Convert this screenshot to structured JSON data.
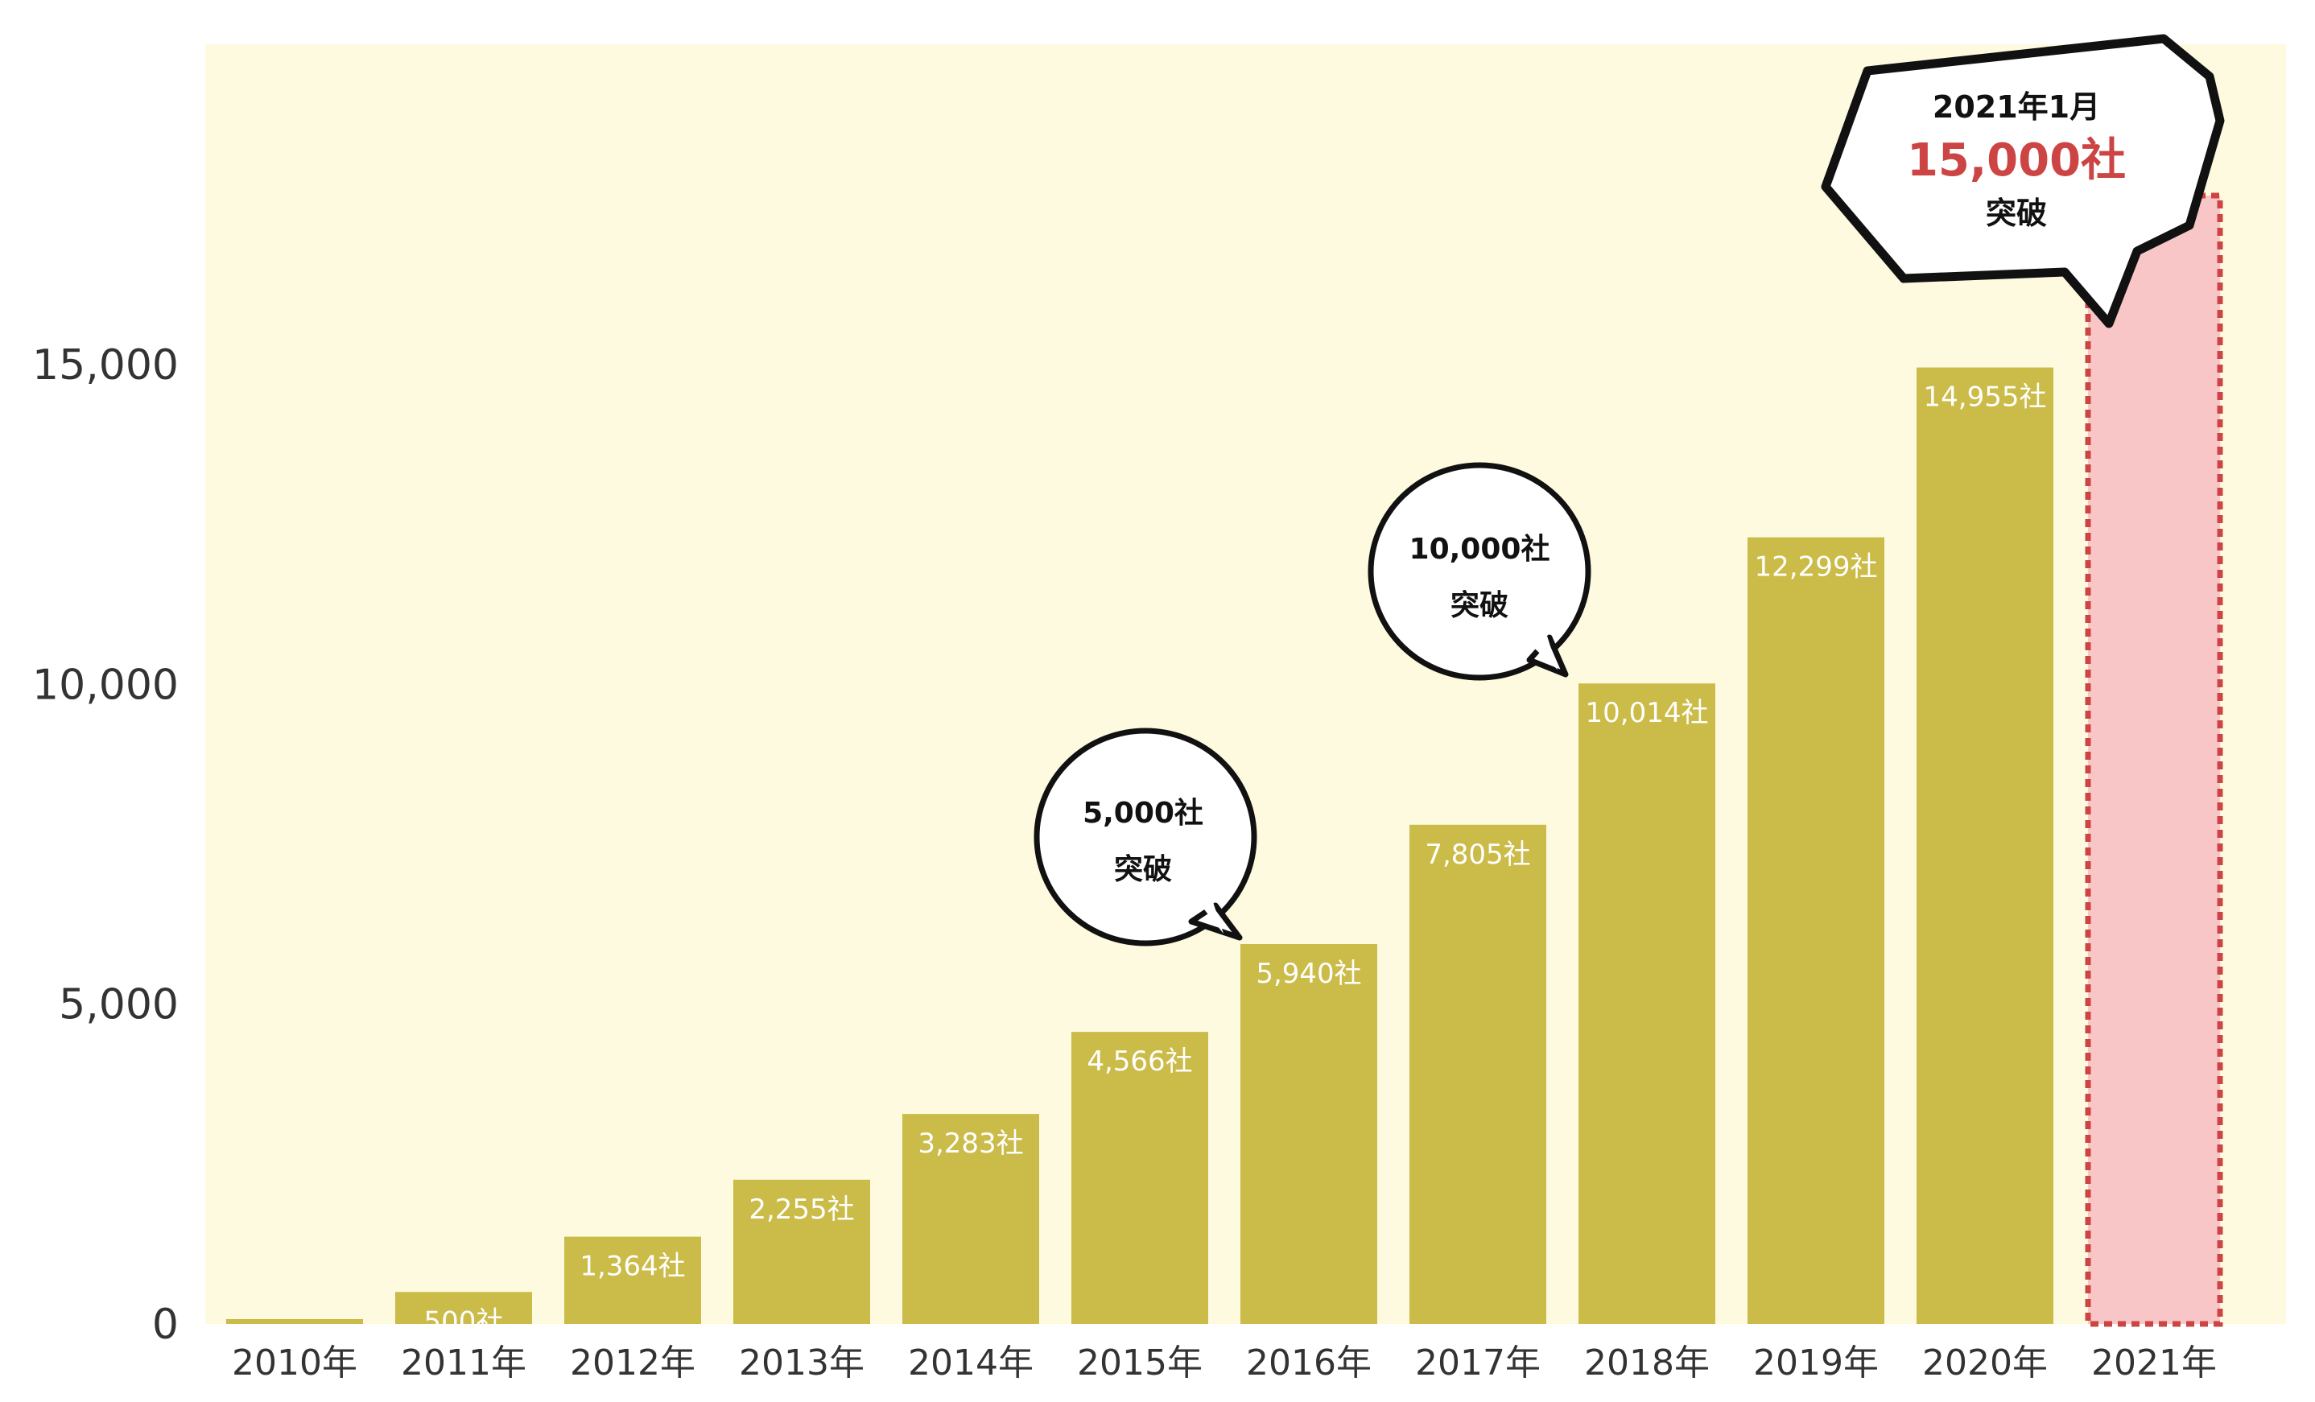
{
  "chart_data": {
    "type": "bar",
    "categories": [
      "2010年",
      "2011年",
      "2012年",
      "2013年",
      "2014年",
      "2015年",
      "2016年",
      "2017年",
      "2018年",
      "2019年",
      "2020年",
      "2021年"
    ],
    "values": [
      0,
      500,
      1364,
      2255,
      3283,
      4566,
      5940,
      7805,
      10014,
      12299,
      14955,
      15000
    ],
    "bar_labels": [
      "",
      "500社",
      "1,364社",
      "2,255社",
      "3,283社",
      "4,566社",
      "5,940社",
      "7,805社",
      "10,014社",
      "12,299社",
      "14,955社",
      ""
    ],
    "yticks": [
      0,
      5000,
      10000,
      15000
    ],
    "ytick_labels": [
      "0",
      "5,000",
      "10,000",
      "15,000"
    ],
    "ylim": [
      0,
      19500
    ],
    "colors": {
      "bar": "#cbbb48",
      "highlight_fill": "#f8c6c6",
      "highlight_border": "#cc4444",
      "plot_bg": "#fefae0",
      "accent_text": "#cc4444"
    },
    "annotations": [
      {
        "lines": [
          "5,000社",
          "突破"
        ],
        "target": "2015年"
      },
      {
        "lines": [
          "10,000社",
          "突破"
        ],
        "target": "2017年"
      },
      {
        "lines": [
          "2021年1月",
          "15,000社",
          "突破"
        ],
        "target": "2021年",
        "highlight": "15,000社"
      }
    ]
  }
}
